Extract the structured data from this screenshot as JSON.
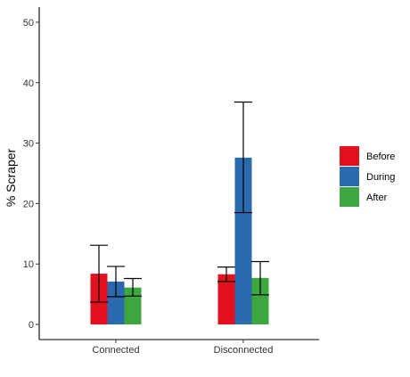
{
  "chart_data": {
    "type": "bar",
    "categories": [
      "Connected",
      "Disconnected"
    ],
    "series": [
      {
        "name": "Before",
        "color": "#E3101E",
        "values": [
          8.4,
          8.3
        ],
        "error_low": [
          3.7,
          7.1
        ],
        "error_high": [
          13.1,
          9.5
        ]
      },
      {
        "name": "During",
        "color": "#2B6AAD",
        "values": [
          7.1,
          27.6
        ],
        "error_low": [
          4.6,
          18.5
        ],
        "error_high": [
          9.6,
          36.8
        ]
      },
      {
        "name": "After",
        "color": "#3DA63E",
        "values": [
          6.1,
          7.7
        ],
        "error_low": [
          4.7,
          4.9
        ],
        "error_high": [
          7.6,
          10.4
        ]
      }
    ],
    "xlabel": "",
    "ylabel": "% Scraper",
    "ylim": [
      -2.5,
      52.5
    ],
    "yticks": [
      0,
      10,
      20,
      30,
      40,
      50
    ],
    "grid": false,
    "legend": "right"
  }
}
